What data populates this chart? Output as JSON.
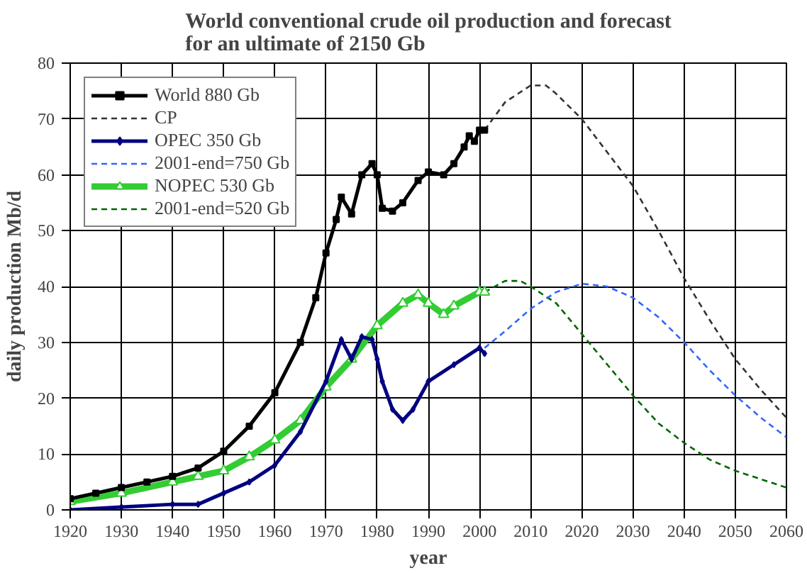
{
  "chart_data": {
    "type": "line",
    "title": "World conventional crude oil production and forecast\nfor an ultimate of 2150 Gb",
    "xlabel": "year",
    "ylabel": "daily production Mb/d",
    "xlim": [
      1920,
      2060
    ],
    "ylim": [
      0,
      80
    ],
    "xticks": [
      1920,
      1930,
      1940,
      1950,
      1960,
      1970,
      1980,
      1990,
      2000,
      2010,
      2020,
      2030,
      2040,
      2050,
      2060
    ],
    "yticks": [
      0,
      10,
      20,
      30,
      40,
      50,
      60,
      70,
      80
    ],
    "grid": true,
    "legend": "top left",
    "series": [
      {
        "name": "World 880 Gb",
        "color": "#000000",
        "marker": "square",
        "line_style": "solid",
        "x": [
          1920,
          1925,
          1930,
          1935,
          1940,
          1945,
          1950,
          1955,
          1960,
          1965,
          1968,
          1970,
          1972,
          1973,
          1975,
          1977,
          1979,
          1980,
          1981,
          1983,
          1985,
          1988,
          1990,
          1993,
          1995,
          1997,
          1998,
          1999,
          2000,
          2001
        ],
        "values": [
          2,
          3,
          4,
          5,
          6,
          7.5,
          10.5,
          15,
          21,
          30,
          38,
          46,
          52,
          56,
          53,
          60,
          62,
          60,
          54,
          53.5,
          55,
          59,
          60.5,
          60,
          62,
          65,
          67,
          66,
          68,
          68
        ]
      },
      {
        "name": "CP",
        "color": "#333333",
        "marker": "none",
        "line_style": "dashed",
        "x": [
          2001,
          2005,
          2010,
          2013,
          2015,
          2020,
          2025,
          2030,
          2035,
          2040,
          2045,
          2050,
          2055,
          2060
        ],
        "values": [
          68,
          73,
          76,
          76,
          74.5,
          70,
          64,
          58,
          50,
          41.5,
          34,
          27,
          21.5,
          16.5
        ]
      },
      {
        "name": "OPEC 350 Gb",
        "color": "#000080",
        "marker": "diamond",
        "line_style": "solid",
        "x": [
          1920,
          1930,
          1940,
          1945,
          1950,
          1955,
          1960,
          1965,
          1970,
          1973,
          1975,
          1977,
          1979,
          1980,
          1981,
          1983,
          1985,
          1987,
          1990,
          1995,
          2000,
          2001
        ],
        "values": [
          0,
          0.5,
          1,
          1,
          3,
          5,
          8,
          14,
          23,
          30.5,
          27,
          31,
          30.5,
          27,
          23,
          18,
          16,
          18,
          23,
          26,
          29,
          28
        ]
      },
      {
        "name": "2001-end=750 Gb",
        "color": "#3366ff",
        "marker": "none",
        "line_style": "dashed",
        "x": [
          2001,
          2005,
          2010,
          2015,
          2020,
          2025,
          2030,
          2035,
          2040,
          2045,
          2050,
          2055,
          2060
        ],
        "values": [
          29,
          32,
          36,
          39,
          40.5,
          40,
          38,
          34.5,
          30,
          25,
          20.5,
          16.5,
          13
        ]
      },
      {
        "name": "NOPEC 530 Gb",
        "color": "#33cc33",
        "marker": "triangle",
        "line_style": "solid",
        "x": [
          1920,
          1930,
          1940,
          1945,
          1950,
          1955,
          1960,
          1965,
          1970,
          1975,
          1980,
          1985,
          1988,
          1990,
          1993,
          1995,
          2000,
          2001
        ],
        "values": [
          1.5,
          3,
          5,
          6,
          7,
          9.5,
          12.5,
          16,
          22,
          27,
          33,
          37,
          38.5,
          37,
          35,
          36.5,
          39,
          39
        ]
      },
      {
        "name": "2001-end=520 Gb",
        "color": "#006600",
        "marker": "none",
        "line_style": "dashed",
        "x": [
          2001,
          2005,
          2008,
          2010,
          2015,
          2020,
          2025,
          2030,
          2035,
          2040,
          2045,
          2050,
          2055,
          2060
        ],
        "values": [
          39,
          41,
          41,
          40,
          37,
          31.5,
          26,
          20.5,
          15.5,
          12,
          9,
          7,
          5.5,
          4
        ]
      }
    ]
  }
}
